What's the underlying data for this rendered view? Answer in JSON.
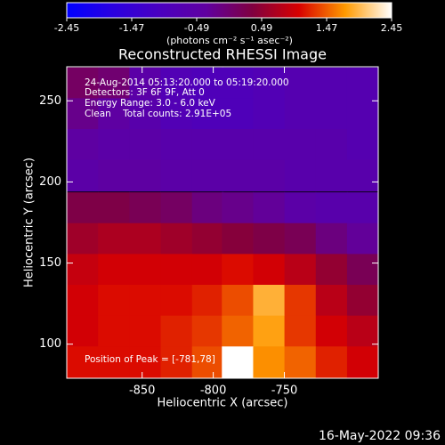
{
  "chart_data": {
    "type": "heatmap",
    "title": "Reconstructed RHESSI Image",
    "x_label": "Heliocentric X (arcsec)",
    "y_label": "Heliocentric Y (arcsec)",
    "colorbar_label": "(photons cm⁻² s⁻¹ asec⁻²)",
    "annotations": [
      "24-Aug-2014 05:13:20.000 to 05:19:20.000",
      "Detectors: 3F 6F 9F, Att 0",
      "Energy Range: 3.0 - 6.0 keV",
      "Clean    Total counts: 2.91E+05"
    ],
    "peak_label": "Position of Peak = [-781,78]",
    "timestamp": "16-May-2022 09:36",
    "xlim": [
      -903,
      -684
    ],
    "ylim": [
      79,
      271
    ],
    "xticks": [
      -850,
      -800,
      -750
    ],
    "yticks": [
      100,
      150,
      200,
      250
    ],
    "zlim": [
      -2.45,
      2.45
    ],
    "zticks": [
      -2.45,
      -1.47,
      -0.49,
      0.49,
      1.47,
      2.45
    ],
    "colorscale": [
      "#0000ff",
      "#2a00e0",
      "#4a00c0",
      "#6000a0",
      "#800040",
      "#d80000",
      "#ff9a00",
      "#ffffff"
    ],
    "grid": false,
    "x": [
      -892,
      -870,
      -848,
      -826,
      -804,
      -783,
      -761,
      -739,
      -717,
      -695
    ],
    "y": [
      261,
      242,
      223,
      204,
      184,
      165,
      146,
      127,
      108,
      89
    ],
    "z": [
      [
        0.1,
        0.0,
        -0.5,
        -0.8,
        -0.9,
        -0.9,
        -0.8,
        -0.7,
        -0.7,
        -0.7
      ],
      [
        -0.2,
        -0.4,
        -0.6,
        -0.8,
        -0.9,
        -0.9,
        -0.8,
        -0.7,
        -0.7,
        -0.7
      ],
      [
        -0.4,
        -0.5,
        -0.5,
        -0.6,
        -0.6,
        -0.6,
        -0.6,
        -0.6,
        -0.6,
        -0.7
      ],
      [
        -0.5,
        -0.4,
        -0.4,
        -0.5,
        -0.5,
        -0.5,
        -0.5,
        -0.6,
        -0.6,
        -0.6
      ],
      [
        0.3,
        0.3,
        0.2,
        0.1,
        -0.1,
        -0.2,
        -0.3,
        -0.5,
        -0.6,
        -0.6
      ],
      [
        0.6,
        0.7,
        0.7,
        0.6,
        0.5,
        0.4,
        0.3,
        0.2,
        -0.1,
        -0.3
      ],
      [
        0.9,
        1.0,
        1.0,
        1.0,
        1.0,
        1.1,
        1.0,
        0.8,
        0.5,
        0.2
      ],
      [
        1.0,
        1.1,
        1.1,
        1.1,
        1.2,
        1.4,
        1.9,
        1.3,
        0.8,
        0.5
      ],
      [
        1.0,
        1.1,
        1.1,
        1.2,
        1.3,
        1.5,
        1.8,
        1.3,
        1.0,
        0.8
      ],
      [
        1.1,
        1.1,
        1.1,
        1.2,
        1.4,
        2.45,
        1.7,
        1.5,
        1.2,
        1.0
      ]
    ]
  }
}
